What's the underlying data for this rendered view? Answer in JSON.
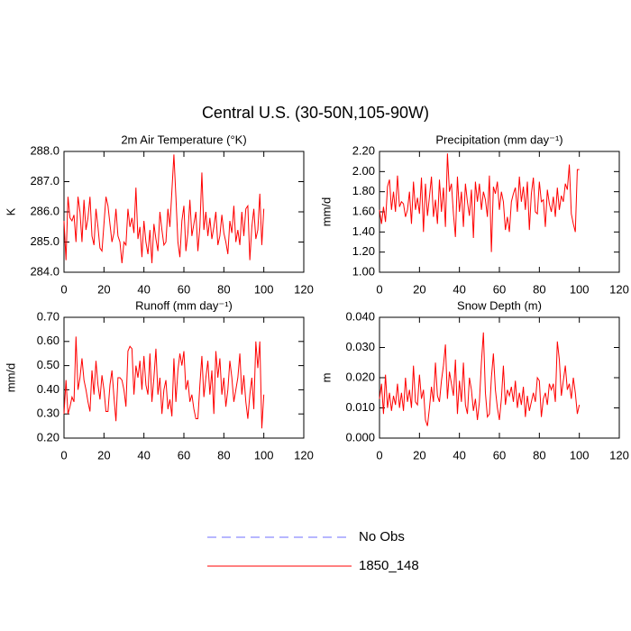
{
  "title": "Central U.S. (30-50N,105-90W)",
  "legend": [
    {
      "name": "No Obs",
      "color": "#6f6fff",
      "dashed": true
    },
    {
      "name": "1850_148",
      "color": "#ff0000",
      "dashed": false
    }
  ],
  "chart_data": [
    {
      "type": "line",
      "title": "2m Air Temperature (°K)",
      "ylabel": "K",
      "color": "#ff0000",
      "x": [
        0,
        1,
        2,
        3,
        4,
        5,
        6,
        7,
        8,
        9,
        10,
        11,
        12,
        13,
        14,
        15,
        16,
        17,
        18,
        19,
        20,
        21,
        22,
        23,
        24,
        25,
        26,
        27,
        28,
        29,
        30,
        31,
        32,
        33,
        34,
        35,
        36,
        37,
        38,
        39,
        40,
        41,
        42,
        43,
        44,
        45,
        46,
        47,
        48,
        49,
        50,
        51,
        52,
        53,
        54,
        55,
        56,
        57,
        58,
        59,
        60,
        61,
        62,
        63,
        64,
        65,
        66,
        67,
        68,
        69,
        70,
        71,
        72,
        73,
        74,
        75,
        76,
        77,
        78,
        79,
        80,
        81,
        82,
        83,
        84,
        85,
        86,
        87,
        88,
        89,
        90,
        91,
        92,
        93,
        94,
        95,
        96,
        97,
        98,
        99,
        100
      ],
      "values": [
        285.7,
        284.4,
        286.5,
        285.8,
        285.7,
        285.9,
        285.0,
        286.5,
        286.0,
        285.0,
        286.4,
        285.4,
        285.8,
        286.5,
        285.2,
        284.9,
        286.1,
        285.5,
        284.8,
        284.7,
        285.6,
        286.5,
        286.2,
        285.6,
        285.0,
        285.3,
        286.1,
        285.2,
        285.0,
        284.3,
        285.0,
        284.9,
        286.1,
        285.5,
        285.8,
        285.3,
        286.8,
        285.1,
        285.5,
        284.5,
        285.7,
        285.0,
        284.6,
        285.4,
        284.3,
        285.6,
        285.1,
        284.7,
        286.0,
        285.4,
        284.9,
        285.0,
        286.1,
        285.5,
        286.7,
        287.9,
        286.5,
        285.0,
        284.5,
        285.7,
        286.2,
        284.7,
        285.3,
        286.4,
        285.2,
        285.6,
        286.0,
        284.7,
        285.5,
        287.3,
        285.4,
        286.0,
        285.2,
        285.8,
        285.1,
        285.5,
        286.0,
        284.9,
        285.2,
        285.9,
        285.3,
        285.0,
        284.6,
        285.7,
        285.3,
        286.2,
        285.0,
        285.4,
        284.9,
        286.0,
        285.2,
        286.1,
        286.2,
        284.4,
        285.5,
        286.1,
        285.1,
        285.4,
        286.6,
        284.9,
        286.1
      ],
      "xlim": [
        0,
        120
      ],
      "xticks": [
        0,
        20,
        40,
        60,
        80,
        100,
        120
      ],
      "ylim": [
        284,
        288
      ],
      "yticks": [
        {
          "value": 284,
          "label": "284.0"
        },
        {
          "value": 285,
          "label": "285.0"
        },
        {
          "value": 286,
          "label": "286.0"
        },
        {
          "value": 287,
          "label": "287.0"
        },
        {
          "value": 288,
          "label": "288.0"
        }
      ]
    },
    {
      "type": "line",
      "title": "Precipitation (mm day⁻¹)",
      "ylabel": "mm/d",
      "color": "#ff0000",
      "x": [
        0,
        1,
        2,
        3,
        4,
        5,
        6,
        7,
        8,
        9,
        10,
        11,
        12,
        13,
        14,
        15,
        16,
        17,
        18,
        19,
        20,
        21,
        22,
        23,
        24,
        25,
        26,
        27,
        28,
        29,
        30,
        31,
        32,
        33,
        34,
        35,
        36,
        37,
        38,
        39,
        40,
        41,
        42,
        43,
        44,
        45,
        46,
        47,
        48,
        49,
        50,
        51,
        52,
        53,
        54,
        55,
        56,
        57,
        58,
        59,
        60,
        61,
        62,
        63,
        64,
        65,
        66,
        67,
        68,
        69,
        70,
        71,
        72,
        73,
        74,
        75,
        76,
        77,
        78,
        79,
        80,
        81,
        82,
        83,
        84,
        85,
        86,
        87,
        88,
        89,
        90,
        91,
        92,
        93,
        94,
        95,
        96,
        97,
        98,
        99,
        100
      ],
      "values": [
        1.62,
        1.48,
        1.65,
        1.5,
        1.85,
        1.92,
        1.62,
        1.8,
        1.6,
        1.96,
        1.65,
        1.7,
        1.68,
        1.55,
        1.62,
        1.8,
        1.48,
        1.9,
        1.62,
        1.74,
        1.58,
        1.94,
        1.4,
        1.88,
        1.56,
        1.75,
        1.95,
        1.55,
        1.72,
        1.48,
        1.92,
        1.6,
        1.84,
        1.45,
        2.18,
        1.8,
        1.88,
        1.58,
        1.35,
        1.95,
        1.6,
        1.8,
        1.45,
        1.88,
        1.7,
        1.56,
        1.82,
        1.34,
        1.9,
        1.7,
        1.88,
        1.62,
        1.8,
        1.72,
        1.55,
        1.96,
        1.2,
        1.85,
        1.78,
        1.9,
        1.62,
        1.8,
        1.7,
        1.42,
        1.55,
        1.4,
        1.7,
        1.78,
        1.84,
        1.6,
        1.95,
        1.7,
        1.85,
        1.62,
        1.9,
        1.42,
        1.78,
        1.94,
        1.6,
        1.58,
        1.9,
        1.7,
        1.72,
        1.45,
        1.82,
        1.68,
        1.6,
        1.75,
        1.55,
        1.84,
        1.62,
        1.76,
        1.7,
        1.88,
        1.82,
        2.07,
        1.58,
        1.48,
        1.4,
        2.02,
        2.02
      ],
      "xlim": [
        0,
        120
      ],
      "xticks": [
        0,
        20,
        40,
        60,
        80,
        100,
        120
      ],
      "ylim": [
        1,
        2.2
      ],
      "yticks": [
        {
          "value": 1,
          "label": "1.00"
        },
        {
          "value": 1.2,
          "label": "1.20"
        },
        {
          "value": 1.4,
          "label": "1.40"
        },
        {
          "value": 1.6,
          "label": "1.60"
        },
        {
          "value": 1.8,
          "label": "1.80"
        },
        {
          "value": 2,
          "label": "2.00"
        },
        {
          "value": 2.2,
          "label": "2.20"
        }
      ]
    },
    {
      "type": "line",
      "title": "Runoff (mm day⁻¹)",
      "ylabel": "mm/d",
      "color": "#ff0000",
      "x": [
        0,
        1,
        2,
        3,
        4,
        5,
        6,
        7,
        8,
        9,
        10,
        11,
        12,
        13,
        14,
        15,
        16,
        17,
        18,
        19,
        20,
        21,
        22,
        23,
        24,
        25,
        26,
        27,
        28,
        29,
        30,
        31,
        32,
        33,
        34,
        35,
        36,
        37,
        38,
        39,
        40,
        41,
        42,
        43,
        44,
        45,
        46,
        47,
        48,
        49,
        50,
        51,
        52,
        53,
        54,
        55,
        56,
        57,
        58,
        59,
        60,
        61,
        62,
        63,
        64,
        65,
        66,
        67,
        68,
        69,
        70,
        71,
        72,
        73,
        74,
        75,
        76,
        77,
        78,
        79,
        80,
        81,
        82,
        83,
        84,
        85,
        86,
        87,
        88,
        89,
        90,
        91,
        92,
        93,
        94,
        95,
        96,
        97,
        98,
        99,
        100
      ],
      "values": [
        0.3,
        0.44,
        0.3,
        0.33,
        0.37,
        0.35,
        0.62,
        0.4,
        0.45,
        0.53,
        0.44,
        0.4,
        0.35,
        0.31,
        0.48,
        0.38,
        0.52,
        0.42,
        0.36,
        0.46,
        0.4,
        0.31,
        0.31,
        0.42,
        0.48,
        0.37,
        0.27,
        0.45,
        0.45,
        0.44,
        0.4,
        0.33,
        0.56,
        0.58,
        0.57,
        0.38,
        0.5,
        0.45,
        0.52,
        0.4,
        0.54,
        0.42,
        0.38,
        0.55,
        0.35,
        0.45,
        0.57,
        0.38,
        0.45,
        0.3,
        0.4,
        0.44,
        0.32,
        0.36,
        0.29,
        0.53,
        0.35,
        0.48,
        0.55,
        0.5,
        0.56,
        0.4,
        0.44,
        0.35,
        0.38,
        0.32,
        0.28,
        0.28,
        0.42,
        0.54,
        0.37,
        0.45,
        0.52,
        0.38,
        0.48,
        0.3,
        0.56,
        0.45,
        0.53,
        0.38,
        0.45,
        0.33,
        0.4,
        0.52,
        0.45,
        0.35,
        0.4,
        0.45,
        0.55,
        0.38,
        0.46,
        0.35,
        0.28,
        0.38,
        0.45,
        0.32,
        0.6,
        0.49,
        0.6,
        0.24,
        0.38
      ],
      "xlim": [
        0,
        120
      ],
      "xticks": [
        0,
        20,
        40,
        60,
        80,
        100,
        120
      ],
      "ylim": [
        0.2,
        0.7
      ],
      "yticks": [
        {
          "value": 0.2,
          "label": "0.20"
        },
        {
          "value": 0.3,
          "label": "0.30"
        },
        {
          "value": 0.4,
          "label": "0.40"
        },
        {
          "value": 0.5,
          "label": "0.50"
        },
        {
          "value": 0.6,
          "label": "0.60"
        },
        {
          "value": 0.7,
          "label": "0.70"
        }
      ]
    },
    {
      "type": "line",
      "title": "Snow Depth (m)",
      "ylabel": "m",
      "color": "#ff0000",
      "x": [
        0,
        1,
        2,
        3,
        4,
        5,
        6,
        7,
        8,
        9,
        10,
        11,
        12,
        13,
        14,
        15,
        16,
        17,
        18,
        19,
        20,
        21,
        22,
        23,
        24,
        25,
        26,
        27,
        28,
        29,
        30,
        31,
        32,
        33,
        34,
        35,
        36,
        37,
        38,
        39,
        40,
        41,
        42,
        43,
        44,
        45,
        46,
        47,
        48,
        49,
        50,
        51,
        52,
        53,
        54,
        55,
        56,
        57,
        58,
        59,
        60,
        61,
        62,
        63,
        64,
        65,
        66,
        67,
        68,
        69,
        70,
        71,
        72,
        73,
        74,
        75,
        76,
        77,
        78,
        79,
        80,
        81,
        82,
        83,
        84,
        85,
        86,
        87,
        88,
        89,
        90,
        91,
        92,
        93,
        94,
        95,
        96,
        97,
        98,
        99,
        100
      ],
      "values": [
        0.013,
        0.018,
        0.008,
        0.021,
        0.01,
        0.015,
        0.009,
        0.014,
        0.011,
        0.018,
        0.01,
        0.015,
        0.009,
        0.02,
        0.012,
        0.016,
        0.01,
        0.024,
        0.012,
        0.011,
        0.021,
        0.013,
        0.016,
        0.006,
        0.004,
        0.01,
        0.017,
        0.012,
        0.025,
        0.014,
        0.012,
        0.019,
        0.024,
        0.031,
        0.013,
        0.022,
        0.018,
        0.014,
        0.026,
        0.008,
        0.019,
        0.012,
        0.025,
        0.011,
        0.008,
        0.02,
        0.016,
        0.009,
        0.013,
        0.006,
        0.012,
        0.025,
        0.035,
        0.015,
        0.007,
        0.008,
        0.02,
        0.028,
        0.016,
        0.01,
        0.006,
        0.013,
        0.024,
        0.011,
        0.016,
        0.014,
        0.017,
        0.012,
        0.019,
        0.01,
        0.015,
        0.011,
        0.017,
        0.007,
        0.014,
        0.009,
        0.012,
        0.015,
        0.012,
        0.02,
        0.019,
        0.007,
        0.013,
        0.015,
        0.011,
        0.018,
        0.016,
        0.018,
        0.012,
        0.032,
        0.026,
        0.014,
        0.019,
        0.024,
        0.016,
        0.018,
        0.013,
        0.02,
        0.015,
        0.008,
        0.011
      ],
      "xlim": [
        0,
        120
      ],
      "xticks": [
        0,
        20,
        40,
        60,
        80,
        100,
        120
      ],
      "ylim": [
        0,
        0.04
      ],
      "yticks": [
        {
          "value": 0,
          "label": "0.000"
        },
        {
          "value": 0.01,
          "label": "0.010"
        },
        {
          "value": 0.02,
          "label": "0.020"
        },
        {
          "value": 0.03,
          "label": "0.030"
        },
        {
          "value": 0.04,
          "label": "0.040"
        }
      ]
    }
  ]
}
